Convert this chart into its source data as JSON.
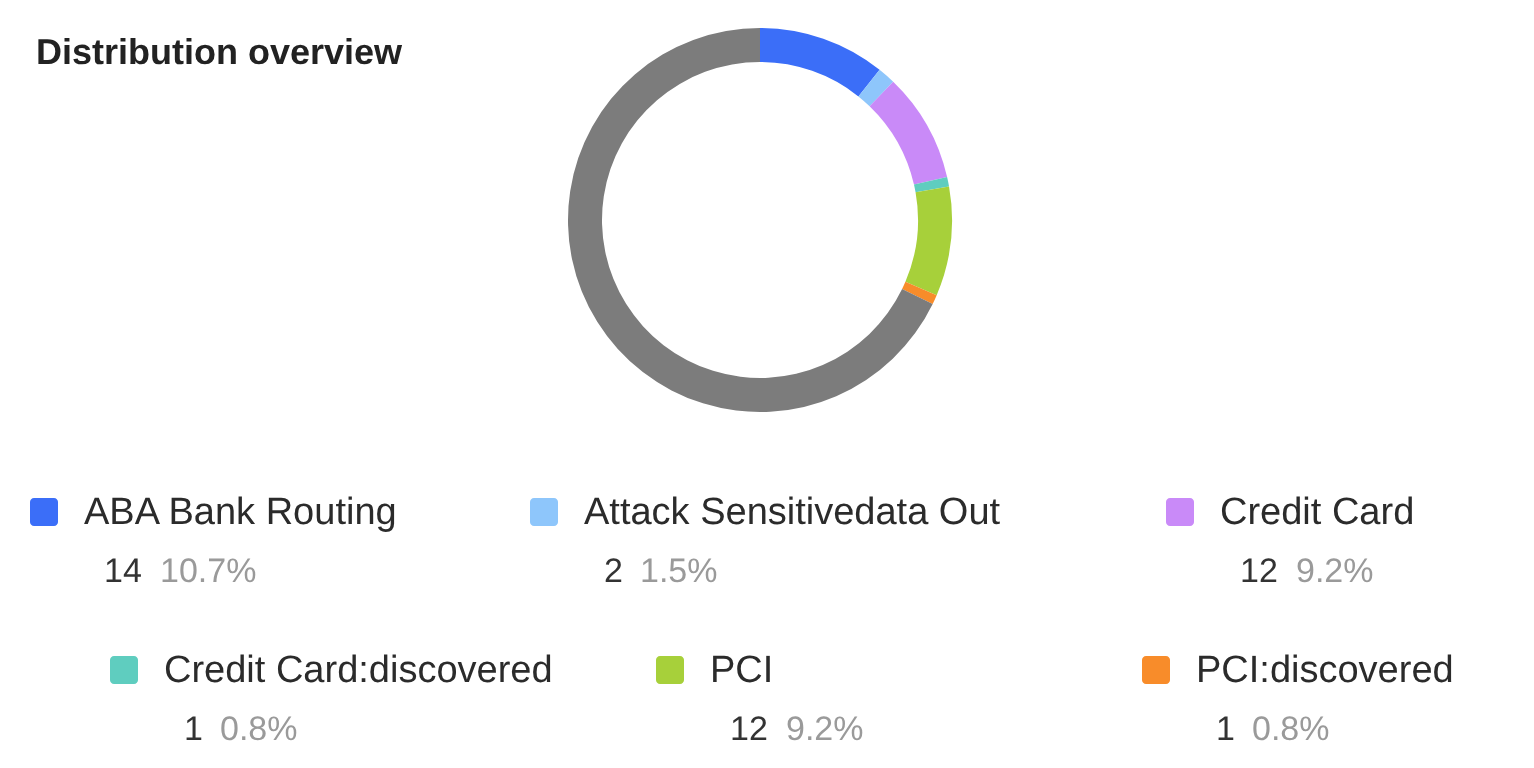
{
  "chart_data": {
    "type": "donut",
    "title": "Distribution overview",
    "categories": [
      "ABA Bank Routing",
      "Attack Sensitivedata Out",
      "Credit Card",
      "Credit Card:discovered",
      "PCI",
      "PCI:discovered",
      null
    ],
    "values": [
      10.7,
      1.5,
      9.2,
      0.8,
      9.2,
      0.8,
      67.8
    ],
    "colors": [
      "#3b6ef8",
      "#8ec6fb",
      "#c98af8",
      "#5fcdbf",
      "#a7d03a",
      "#f88c2a",
      "#7c7c7c"
    ],
    "value_labels": [
      "14 10.7%",
      "2 1.5%",
      "12 9.2%",
      "1 0.8%",
      "12 9.2%",
      "1 0.8%",
      null
    ],
    "legend": "bottom"
  }
}
